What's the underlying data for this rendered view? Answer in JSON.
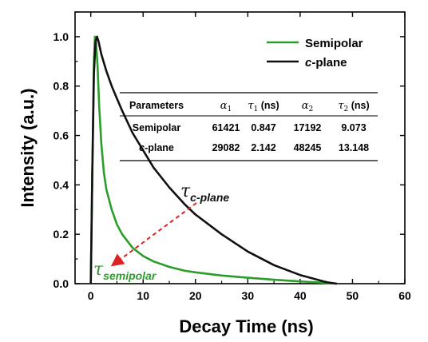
{
  "chart_data": {
    "type": "line",
    "xlabel": "Decay Time (ns)",
    "ylabel": "Intensity (a.u.)",
    "xlim": [
      -3,
      60
    ],
    "ylim": [
      0,
      1.1
    ],
    "xticks": [
      "0",
      "10",
      "20",
      "30",
      "40",
      "50",
      "60"
    ],
    "yticks": [
      "0.0",
      "0.2",
      "0.4",
      "0.6",
      "0.8",
      "1.0"
    ],
    "grid": false,
    "legend_position": "top-right",
    "series": [
      {
        "name": "Semipolar",
        "color": "#2a9d2a",
        "x": [
          0.0,
          0.3,
          0.6,
          0.8,
          1.0,
          1.3,
          1.6,
          2.0,
          2.5,
          3,
          4,
          5,
          6,
          8,
          10,
          12,
          15,
          18,
          20,
          25,
          30,
          35,
          40,
          45,
          47
        ],
        "y": [
          0.0,
          0.45,
          0.9,
          1.0,
          0.98,
          0.88,
          0.72,
          0.57,
          0.45,
          0.38,
          0.3,
          0.24,
          0.2,
          0.145,
          0.112,
          0.09,
          0.068,
          0.052,
          0.046,
          0.033,
          0.024,
          0.016,
          0.009,
          0.003,
          0.0
        ]
      },
      {
        "name": "c-plane",
        "color": "#111111",
        "x": [
          0.0,
          0.3,
          0.6,
          0.9,
          1.2,
          1.5,
          2,
          3,
          4,
          5,
          6,
          8,
          10,
          12,
          15,
          18,
          20,
          25,
          30,
          35,
          40,
          45,
          47
        ],
        "y": [
          0.0,
          0.45,
          0.85,
          0.98,
          1.0,
          0.98,
          0.93,
          0.86,
          0.8,
          0.75,
          0.7,
          0.61,
          0.54,
          0.47,
          0.39,
          0.32,
          0.28,
          0.2,
          0.13,
          0.075,
          0.035,
          0.006,
          0.0
        ]
      }
    ],
    "legend": [
      {
        "prefix": "",
        "italic": "",
        "label": "Semipolar"
      },
      {
        "prefix": "",
        "italic": "c",
        "label": "-plane"
      }
    ],
    "table": {
      "headers": [
        {
          "text": "Parameters",
          "italic": false
        },
        {
          "text": "α",
          "sub": "1",
          "italic": true
        },
        {
          "text": "τ",
          "sub": "1",
          "suffix": " (ns)",
          "italic": true
        },
        {
          "text": "α",
          "sub": "2",
          "italic": true
        },
        {
          "text": "τ",
          "sub": "2",
          "suffix": " (ns)",
          "italic": true
        }
      ],
      "rows": [
        {
          "label_italic": "",
          "label": "Semipolar",
          "values": [
            "61421",
            "0.847",
            "17192",
            "9.073"
          ]
        },
        {
          "label_italic": "c",
          "label": "-plane",
          "values": [
            "29082",
            "2.142",
            "48245",
            "13.148"
          ]
        }
      ]
    },
    "annotations": [
      {
        "symbol": "τ",
        "sub": "c-plane",
        "color": "#111111"
      },
      {
        "symbol": "τ",
        "sub": "semipolar",
        "color": "#2a9d2a"
      }
    ],
    "arrow_color": "#dd2222"
  }
}
